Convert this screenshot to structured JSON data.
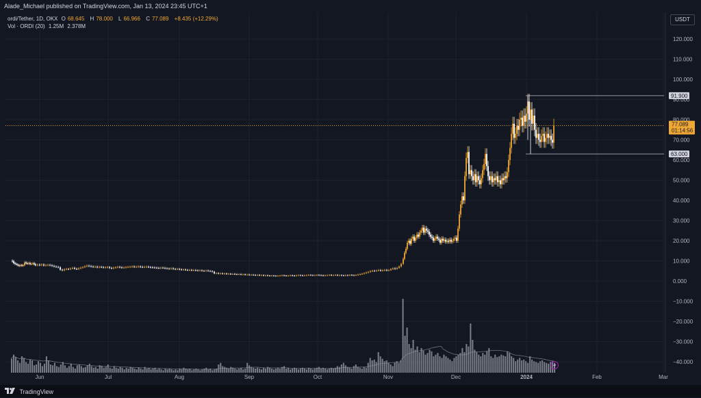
{
  "header": {
    "published": "Alade_Michael published on TradingView.com, Jan 13, 2024 23:45 UTC+1"
  },
  "legend": {
    "symbol": "ordi/Tether, 1D, OKX",
    "o_label": "O",
    "o": "68.645",
    "h_label": "H",
    "h": "78.000",
    "l_label": "L",
    "l": "66.966",
    "c_label": "C",
    "c": "77.089",
    "change": "+8.435 (+12.29%)",
    "vol_label": "Vol · ORDI (20)",
    "vol": "1.25M",
    "vol_ma": "2.378M"
  },
  "axis": {
    "currency": "USDT"
  },
  "footer": {
    "brand": "TradingView"
  },
  "colors": {
    "background": "#131722",
    "up": "#f0a734",
    "down": "#ffffff",
    "grid": "#1e222d",
    "axis_text": "#b2b5be",
    "volume": "#8a8d96",
    "price_line": "#f0a734"
  },
  "chart_data": {
    "type": "candlestick",
    "y_ticks": [
      "120.000",
      "110.000",
      "100.000",
      "90.000",
      "80.000",
      "70.000",
      "60.000",
      "50.000",
      "40.000",
      "30.000",
      "20.000",
      "10.000",
      "0.000",
      "−10.000",
      "−20.000",
      "−30.000",
      "−40.000"
    ],
    "y_tick_values": [
      120,
      110,
      100,
      90,
      80,
      70,
      60,
      50,
      40,
      30,
      20,
      10,
      0,
      -10,
      -20,
      -30,
      -40
    ],
    "x_ticks": [
      "Jun",
      "Jul",
      "Aug",
      "Sep",
      "Oct",
      "Nov",
      "Dec",
      "2024",
      "Feb",
      "Mar"
    ],
    "ylim": [
      -45,
      125
    ],
    "current_price": {
      "value": 77.089,
      "label": "77.089",
      "countdown": "01:14:56"
    },
    "levels": [
      {
        "value": 91.9,
        "label": "91.900"
      },
      {
        "value": 63.0,
        "label": "63.000"
      }
    ],
    "price_path": [
      [
        16.5,
        10
      ],
      [
        18,
        9.8
      ],
      [
        20,
        8.9
      ],
      [
        22,
        8.5
      ],
      [
        24,
        8.2
      ],
      [
        26,
        7.8
      ],
      [
        28,
        7.5
      ],
      [
        30,
        7.9
      ],
      [
        32,
        7.6
      ],
      [
        34,
        7.8
      ],
      [
        36,
        9.2
      ],
      [
        38,
        8.8
      ],
      [
        40,
        8.6
      ],
      [
        42,
        8.9
      ],
      [
        44,
        8.4
      ],
      [
        46,
        8.5
      ],
      [
        48,
        8.8
      ],
      [
        50,
        8.3
      ],
      [
        52,
        7.8
      ],
      [
        55,
        8.1
      ],
      [
        58,
        7.9
      ],
      [
        61,
        8.2
      ],
      [
        64,
        7.7
      ],
      [
        67,
        7.9
      ],
      [
        70,
        8.0
      ],
      [
        73,
        7.8
      ],
      [
        76,
        7.5
      ],
      [
        79,
        7.2
      ],
      [
        82,
        7.0
      ],
      [
        85,
        6.8
      ],
      [
        88,
        5.6
      ],
      [
        91,
        5.3
      ],
      [
        94,
        5.8
      ],
      [
        97,
        6.0
      ],
      [
        100,
        5.9
      ],
      [
        103,
        6.2
      ],
      [
        106,
        6.5
      ],
      [
        109,
        6.1
      ],
      [
        112,
        5.9
      ],
      [
        115,
        6.3
      ],
      [
        118,
        6.6
      ],
      [
        121,
        6.9
      ],
      [
        124,
        7.3
      ],
      [
        127,
        7.6
      ],
      [
        130,
        7.4
      ],
      [
        133,
        7.2
      ],
      [
        136,
        7.0
      ],
      [
        139,
        7.1
      ],
      [
        142,
        6.8
      ],
      [
        145,
        7.0
      ],
      [
        148,
        6.9
      ],
      [
        151,
        6.7
      ],
      [
        154,
        6.8
      ],
      [
        157,
        6.9
      ],
      [
        160,
        6.5
      ],
      [
        163,
        6.3
      ],
      [
        166,
        6.6
      ],
      [
        169,
        6.8
      ],
      [
        172,
        7.0
      ],
      [
        175,
        6.8
      ],
      [
        178,
        6.6
      ],
      [
        181,
        6.7
      ],
      [
        184,
        6.9
      ],
      [
        187,
        7.0
      ],
      [
        190,
        7.1
      ],
      [
        193,
        7.2
      ],
      [
        196,
        7.0
      ],
      [
        199,
        7.1
      ],
      [
        202,
        7.2
      ],
      [
        205,
        7.0
      ],
      [
        208,
        6.9
      ],
      [
        211,
        7.0
      ],
      [
        214,
        7.1
      ],
      [
        217,
        6.9
      ],
      [
        220,
        6.8
      ],
      [
        223,
        6.7
      ],
      [
        226,
        6.6
      ],
      [
        229,
        6.5
      ],
      [
        232,
        6.4
      ],
      [
        235,
        6.6
      ],
      [
        238,
        6.5
      ],
      [
        241,
        6.3
      ],
      [
        244,
        6.2
      ],
      [
        247,
        6.1
      ],
      [
        250,
        6.3
      ],
      [
        253,
        6.0
      ],
      [
        256,
        5.9
      ],
      [
        259,
        6.0
      ],
      [
        262,
        5.8
      ],
      [
        265,
        5.6
      ],
      [
        268,
        5.7
      ],
      [
        271,
        5.5
      ],
      [
        274,
        5.4
      ],
      [
        277,
        5.5
      ],
      [
        280,
        5.3
      ],
      [
        283,
        5.4
      ],
      [
        286,
        5.3
      ],
      [
        289,
        5.2
      ],
      [
        292,
        5.3
      ],
      [
        295,
        5.1
      ],
      [
        298,
        5.0
      ],
      [
        301,
        5.2
      ],
      [
        304,
        5.0
      ],
      [
        307,
        4.9
      ],
      [
        310,
        4.6
      ],
      [
        313,
        3.8
      ],
      [
        316,
        3.9
      ],
      [
        319,
        3.7
      ],
      [
        322,
        3.8
      ],
      [
        325,
        3.6
      ],
      [
        328,
        3.7
      ],
      [
        331,
        3.5
      ],
      [
        334,
        3.6
      ],
      [
        337,
        3.4
      ],
      [
        340,
        3.5
      ],
      [
        343,
        3.4
      ],
      [
        346,
        3.3
      ],
      [
        349,
        3.4
      ],
      [
        352,
        3.2
      ],
      [
        355,
        3.3
      ],
      [
        358,
        3.1
      ],
      [
        361,
        3.2
      ],
      [
        364,
        3.0
      ],
      [
        367,
        3.1
      ],
      [
        370,
        3.0
      ],
      [
        373,
        2.9
      ],
      [
        376,
        3.0
      ],
      [
        379,
        2.8
      ],
      [
        382,
        2.9
      ],
      [
        385,
        2.7
      ],
      [
        388,
        2.8
      ],
      [
        391,
        2.7
      ],
      [
        394,
        2.6
      ],
      [
        397,
        2.7
      ],
      [
        400,
        2.6
      ],
      [
        403,
        2.5
      ],
      [
        406,
        2.6
      ],
      [
        409,
        2.7
      ],
      [
        412,
        2.8
      ],
      [
        415,
        2.7
      ],
      [
        418,
        2.6
      ],
      [
        421,
        2.7
      ],
      [
        424,
        2.8
      ],
      [
        427,
        2.7
      ],
      [
        430,
        2.6
      ],
      [
        433,
        2.8
      ],
      [
        436,
        2.9
      ],
      [
        439,
        2.8
      ],
      [
        442,
        2.7
      ],
      [
        445,
        2.8
      ],
      [
        448,
        2.9
      ],
      [
        451,
        3.0
      ],
      [
        454,
        2.9
      ],
      [
        457,
        2.8
      ],
      [
        460,
        2.9
      ],
      [
        463,
        3.0
      ],
      [
        466,
        2.9
      ],
      [
        469,
        2.8
      ],
      [
        472,
        2.7
      ],
      [
        475,
        2.8
      ],
      [
        478,
        2.9
      ],
      [
        481,
        3.0
      ],
      [
        484,
        2.8
      ],
      [
        487,
        2.9
      ],
      [
        490,
        3.0
      ],
      [
        493,
        2.8
      ],
      [
        496,
        2.9
      ],
      [
        499,
        2.8
      ],
      [
        502,
        2.7
      ],
      [
        505,
        2.9
      ],
      [
        508,
        2.8
      ],
      [
        511,
        3.0
      ],
      [
        514,
        2.9
      ],
      [
        517,
        2.8
      ],
      [
        520,
        3.0
      ],
      [
        523,
        3.2
      ],
      [
        526,
        3.4
      ],
      [
        529,
        3.6
      ],
      [
        532,
        3.9
      ],
      [
        535,
        4.2
      ],
      [
        538,
        4.5
      ],
      [
        541,
        4.9
      ],
      [
        544,
        5.1
      ],
      [
        547,
        5.0
      ],
      [
        550,
        5.2
      ],
      [
        553,
        5.4
      ],
      [
        556,
        5.1
      ],
      [
        559,
        5.3
      ],
      [
        562,
        5.5
      ],
      [
        565,
        5.2
      ],
      [
        568,
        5.4
      ],
      [
        571,
        5.9
      ],
      [
        574,
        6.3
      ],
      [
        577,
        6.0
      ],
      [
        580,
        6.5
      ],
      [
        583,
        7.2
      ],
      [
        586,
        8.5
      ],
      [
        589,
        11
      ],
      [
        591,
        14
      ],
      [
        593,
        16
      ],
      [
        595,
        19
      ],
      [
        597,
        20
      ],
      [
        599,
        18.5
      ],
      [
        601,
        21
      ],
      [
        603,
        22
      ],
      [
        605,
        20
      ],
      [
        607,
        21.5
      ],
      [
        609,
        23
      ],
      [
        611,
        22
      ],
      [
        613,
        24
      ],
      [
        615,
        25
      ],
      [
        617,
        26.5
      ],
      [
        619,
        24
      ],
      [
        621,
        26
      ],
      [
        623,
        25
      ],
      [
        625,
        24.5
      ],
      [
        627,
        23
      ],
      [
        629,
        22
      ],
      [
        631,
        21.5
      ],
      [
        633,
        20
      ],
      [
        635,
        21
      ],
      [
        637,
        22
      ],
      [
        639,
        21
      ],
      [
        641,
        20.5
      ],
      [
        643,
        19
      ],
      [
        645,
        21
      ],
      [
        647,
        20
      ],
      [
        649,
        20.5
      ],
      [
        651,
        19.5
      ],
      [
        653,
        20
      ],
      [
        655,
        19.5
      ],
      [
        657,
        20.5
      ],
      [
        659,
        19.5
      ],
      [
        661,
        20
      ],
      [
        663,
        21
      ],
      [
        665,
        21.5
      ],
      [
        667,
        20
      ],
      [
        669,
        26
      ],
      [
        671,
        33
      ],
      [
        673,
        38
      ],
      [
        675,
        42
      ],
      [
        677,
        40
      ],
      [
        679,
        52
      ],
      [
        681,
        61
      ],
      [
        683,
        64
      ],
      [
        685,
        53
      ],
      [
        687,
        55
      ],
      [
        689,
        52
      ],
      [
        691,
        50
      ],
      [
        693,
        53
      ],
      [
        695,
        49
      ],
      [
        697,
        52
      ],
      [
        699,
        50
      ],
      [
        701,
        48
      ],
      [
        703,
        51
      ],
      [
        705,
        55
      ],
      [
        707,
        58
      ],
      [
        709,
        63
      ],
      [
        711,
        57
      ],
      [
        713,
        52
      ],
      [
        715,
        50
      ],
      [
        717,
        52
      ],
      [
        719,
        49
      ],
      [
        721,
        51
      ],
      [
        723,
        50
      ],
      [
        725,
        52
      ],
      [
        727,
        49
      ],
      [
        729,
        50
      ],
      [
        731,
        48
      ],
      [
        733,
        51
      ],
      [
        735,
        50
      ],
      [
        737,
        52
      ],
      [
        739,
        51
      ],
      [
        741,
        54
      ],
      [
        743,
        60
      ],
      [
        745,
        66
      ],
      [
        747,
        73
      ],
      [
        749,
        78
      ],
      [
        751,
        71
      ],
      [
        753,
        73
      ],
      [
        755,
        77
      ],
      [
        757,
        75
      ],
      [
        759,
        80
      ],
      [
        761,
        81
      ],
      [
        763,
        77
      ],
      [
        765,
        82
      ],
      [
        767,
        79
      ],
      [
        769,
        83
      ],
      [
        771,
        89
      ],
      [
        773,
        80
      ],
      [
        775,
        85
      ],
      [
        777,
        78
      ],
      [
        779,
        82
      ],
      [
        781,
        75
      ],
      [
        783,
        71
      ],
      [
        785,
        73
      ],
      [
        787,
        70
      ],
      [
        789,
        69
      ],
      [
        791,
        72
      ],
      [
        793,
        73
      ],
      [
        795,
        69
      ],
      [
        797,
        71
      ],
      [
        799,
        73
      ],
      [
        801,
        71
      ],
      [
        803,
        72
      ],
      [
        805,
        70
      ],
      [
        807,
        68.6
      ],
      [
        809,
        77.1
      ]
    ],
    "volume_heights": [
      0.17,
      0.22,
      0.19,
      0.15,
      0.12,
      0.2,
      0.18,
      0.13,
      0.11,
      0.16,
      0.15,
      0.09,
      0.1,
      0.14,
      0.12,
      0.08,
      0.11,
      0.2,
      0.15,
      0.1,
      0.09,
      0.12,
      0.08,
      0.07,
      0.1,
      0.13,
      0.09,
      0.06,
      0.08,
      0.11,
      0.07,
      0.05,
      0.09,
      0.1,
      0.08,
      0.06,
      0.07,
      0.09,
      0.11,
      0.08,
      0.06,
      0.07,
      0.05,
      0.09,
      0.08,
      0.06,
      0.07,
      0.1,
      0.06,
      0.05,
      0.08,
      0.06,
      0.05,
      0.07,
      0.06,
      0.04,
      0.06,
      0.05,
      0.07,
      0.06,
      0.05,
      0.04,
      0.06,
      0.05,
      0.04,
      0.07,
      0.05,
      0.06,
      0.04,
      0.05,
      0.06,
      0.04,
      0.05,
      0.04,
      0.03,
      0.05,
      0.04,
      0.05,
      0.04,
      0.03,
      0.04,
      0.03,
      0.05,
      0.04,
      0.06,
      0.05,
      0.04,
      0.05,
      0.03,
      0.04,
      0.05,
      0.04,
      0.03,
      0.04,
      0.05,
      0.06,
      0.04,
      0.05,
      0.03,
      0.04,
      0.05,
      0.1,
      0.12,
      0.08,
      0.07,
      0.06,
      0.05,
      0.07,
      0.06,
      0.05,
      0.04,
      0.05,
      0.06,
      0.04,
      0.05,
      0.12,
      0.09,
      0.07,
      0.06,
      0.05,
      0.06,
      0.05,
      0.04,
      0.06,
      0.05,
      0.07,
      0.06,
      0.05,
      0.04,
      0.05,
      0.06,
      0.05,
      0.07,
      0.08,
      0.05,
      0.06,
      0.04,
      0.05,
      0.06,
      0.05,
      0.04,
      0.05,
      0.06,
      0.05,
      0.04,
      0.06,
      0.05,
      0.04,
      0.05,
      0.06,
      0.07,
      0.05,
      0.06,
      0.05,
      0.04,
      0.05,
      0.06,
      0.05,
      0.06,
      0.08,
      0.07,
      0.1,
      0.12,
      0.09,
      0.07,
      0.06,
      0.05,
      0.08,
      0.1,
      0.07,
      0.06,
      0.05,
      0.07,
      0.06,
      0.12,
      0.18,
      0.15,
      0.16,
      0.13,
      0.25,
      0.2,
      0.17,
      0.14,
      0.15,
      0.12,
      0.1,
      0.08,
      0.12,
      0.14,
      0.12,
      0.15,
      0.9,
      0.45,
      0.55,
      0.35,
      0.3,
      0.4,
      0.28,
      0.32,
      0.25,
      0.3,
      0.27,
      0.22,
      0.24,
      0.28,
      0.26,
      0.2,
      0.22,
      0.24,
      0.2,
      0.18,
      0.22,
      0.2,
      0.18,
      0.16,
      0.14,
      0.18,
      0.2,
      0.22,
      0.24,
      0.3,
      0.25,
      0.35,
      0.32,
      0.6,
      0.4,
      0.28,
      0.25,
      0.22,
      0.2,
      0.24,
      0.22,
      0.26,
      0.3,
      0.2,
      0.18,
      0.22,
      0.19,
      0.2,
      0.22,
      0.21,
      0.2,
      0.26,
      0.24,
      0.2,
      0.18,
      0.14,
      0.16,
      0.18,
      0.15,
      0.16,
      0.14,
      0.12,
      0.2,
      0.16,
      0.14,
      0.13,
      0.12,
      0.14,
      0.15,
      0.13,
      0.12,
      0.11,
      0.13,
      0.14,
      0.12
    ]
  }
}
